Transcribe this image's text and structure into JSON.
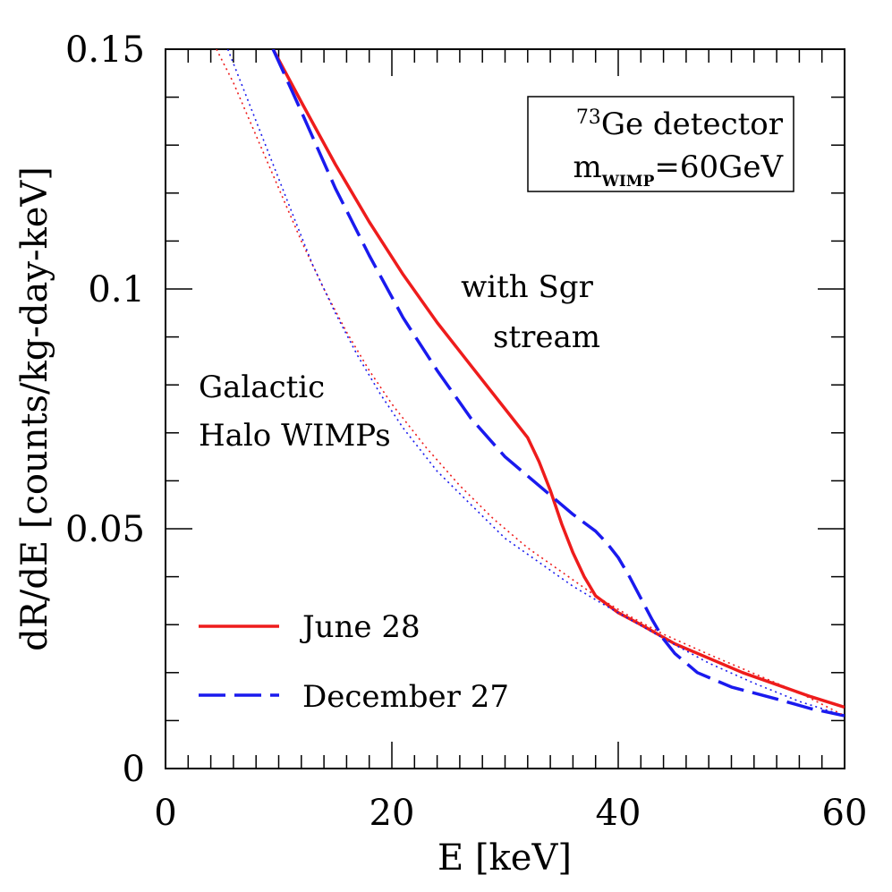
{
  "chart_data": {
    "type": "line",
    "xlabel": "E [keV]",
    "ylabel": "dR/dE [counts/kg-day-keV]",
    "xlim": [
      0,
      60
    ],
    "ylim": [
      0,
      0.15
    ],
    "x_ticks": [
      0,
      20,
      40,
      60
    ],
    "x_tick_labels": [
      "0",
      "20",
      "40",
      "60"
    ],
    "y_ticks": [
      0,
      0.05,
      0.1,
      0.15
    ],
    "y_tick_labels": [
      "0",
      "0.05",
      "0.1",
      "0.15"
    ],
    "x_minor_step": 2,
    "y_minor_step": 0.01,
    "grid": false,
    "legend_position": "bottom-left",
    "annotations": {
      "detector_box": {
        "isotope_mass": "73",
        "isotope_symbol": "Ge detector",
        "mass_prefix": "m",
        "mass_subscript": "WIMP",
        "mass_value": "=60GeV"
      },
      "stream_label": [
        "with Sgr",
        "stream"
      ],
      "halo_label": [
        "Galactic",
        "Halo WIMPs"
      ]
    },
    "series": [
      {
        "name": "June 28",
        "style": "solid",
        "color": "#ee1c1c",
        "x": [
          9.5,
          12,
          15,
          18,
          21,
          24,
          27,
          30,
          32,
          33,
          34,
          35,
          36,
          37,
          38,
          40,
          42,
          45,
          48,
          51,
          54,
          57,
          60
        ],
        "y": [
          0.15,
          0.139,
          0.126,
          0.114,
          0.103,
          0.093,
          0.084,
          0.075,
          0.069,
          0.064,
          0.058,
          0.051,
          0.045,
          0.04,
          0.036,
          0.0325,
          0.03,
          0.026,
          0.023,
          0.02,
          0.0175,
          0.015,
          0.0128
        ]
      },
      {
        "name": "December 27",
        "style": "dashed",
        "color": "#1a1aee",
        "x": [
          9.5,
          12,
          15,
          18,
          21,
          24,
          27,
          30,
          33,
          36,
          38,
          39,
          40,
          41,
          42,
          43,
          44,
          45,
          47,
          50,
          54,
          57,
          60
        ],
        "y": [
          0.15,
          0.137,
          0.121,
          0.107,
          0.094,
          0.083,
          0.073,
          0.065,
          0.059,
          0.053,
          0.0495,
          0.047,
          0.044,
          0.04,
          0.0355,
          0.031,
          0.027,
          0.024,
          0.02,
          0.017,
          0.0145,
          0.0125,
          0.011
        ]
      },
      {
        "name": "Galactic Halo WIMPs (June)",
        "style": "dotted",
        "color": "#ee1c1c",
        "x": [
          4.5,
          6,
          8,
          10,
          12,
          14,
          16,
          18,
          20,
          23,
          26,
          29,
          32,
          35,
          38,
          41,
          44,
          48,
          52,
          56,
          60
        ],
        "y": [
          0.15,
          0.143,
          0.132,
          0.121,
          0.11,
          0.1,
          0.091,
          0.083,
          0.076,
          0.067,
          0.059,
          0.052,
          0.046,
          0.041,
          0.036,
          0.0318,
          0.028,
          0.0238,
          0.0198,
          0.0158,
          0.011
        ]
      },
      {
        "name": "Galactic Halo WIMPs (December)",
        "style": "dotted",
        "color": "#1a1aee",
        "x": [
          5.5,
          7,
          9,
          11,
          13,
          15,
          17,
          19,
          21,
          24,
          27,
          30,
          33,
          36,
          39,
          42,
          45,
          48,
          52,
          56,
          60
        ],
        "y": [
          0.15,
          0.141,
          0.129,
          0.117,
          0.105,
          0.095,
          0.086,
          0.078,
          0.071,
          0.062,
          0.055,
          0.048,
          0.043,
          0.038,
          0.0338,
          0.0298,
          0.0258,
          0.022,
          0.0178,
          0.014,
          0.011
        ]
      }
    ]
  }
}
